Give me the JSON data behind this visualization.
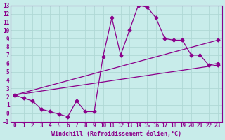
{
  "xlabel": "Windchill (Refroidissement éolien,°C)",
  "background_color": "#c8ecea",
  "grid_color": "#afd8d5",
  "line_color": "#8b008b",
  "xlim": [
    -0.5,
    23.5
  ],
  "ylim": [
    -1,
    13
  ],
  "xticks": [
    0,
    1,
    2,
    3,
    4,
    5,
    6,
    7,
    8,
    9,
    10,
    11,
    12,
    13,
    14,
    15,
    16,
    17,
    18,
    19,
    20,
    21,
    22,
    23
  ],
  "yticks": [
    -1,
    0,
    1,
    2,
    3,
    4,
    5,
    6,
    7,
    8,
    9,
    10,
    11,
    12,
    13
  ],
  "curve1_x": [
    0,
    1,
    2,
    3,
    4,
    5,
    6,
    7,
    8,
    9,
    10,
    11,
    12,
    13,
    14,
    15,
    16,
    17,
    18,
    19,
    20,
    21,
    22,
    23
  ],
  "curve1_y": [
    2.2,
    1.8,
    1.5,
    0.5,
    0.2,
    -0.1,
    -0.4,
    1.5,
    0.2,
    0.2,
    6.8,
    11.5,
    7.0,
    10.0,
    13.0,
    12.8,
    11.5,
    9.0,
    8.8,
    8.8,
    7.0,
    7.0,
    5.8,
    6.0
  ],
  "line1_x": [
    0,
    23
  ],
  "line1_y": [
    2.2,
    5.8
  ],
  "line2_x": [
    0,
    23
  ],
  "line2_y": [
    2.2,
    8.8
  ],
  "line_width": 0.9,
  "marker": "D",
  "marker_size": 2.5,
  "tick_fontsize": 5.5,
  "xlabel_fontsize": 6.0
}
